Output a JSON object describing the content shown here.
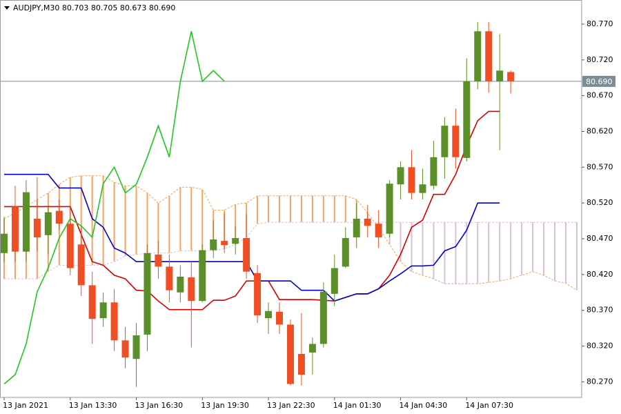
{
  "chart_data": {
    "type": "candlestick",
    "title": "AUDJPY,M30  80.703 80.705 80.673 80.690",
    "categories": [
      "13 Jan 2021",
      null,
      null,
      null,
      null,
      null,
      "13 Jan 13:30",
      null,
      null,
      null,
      null,
      null,
      "13 Jan 16:30",
      null,
      null,
      null,
      null,
      null,
      "13 Jan 19:30",
      null,
      null,
      null,
      null,
      null,
      "13 Jan 22:30",
      null,
      null,
      null,
      null,
      null,
      "14 Jan 01:30",
      null,
      null,
      null,
      null,
      null,
      "14 Jan 04:30",
      null,
      null,
      null,
      null,
      null,
      "14 Jan 07:30",
      null,
      null,
      null,
      null,
      null,
      null,
      null,
      null,
      null,
      null
    ],
    "ohlc": {
      "up_color": "#5a8f29",
      "down_color": "#f04e23",
      "open": [
        80.45,
        80.515,
        80.452,
        80.498,
        80.475,
        80.509,
        80.491,
        80.462,
        80.405,
        80.359,
        80.381,
        80.328,
        80.302,
        80.336,
        80.448,
        80.431,
        80.395,
        80.416,
        80.383,
        80.454,
        80.467,
        80.463,
        80.471,
        80.422,
        80.359,
        80.368,
        80.35,
        80.309,
        80.311,
        80.323,
        80.393,
        80.431,
        80.472,
        80.498,
        80.491,
        80.477,
        80.546,
        80.57,
        80.534,
        80.544,
        80.584,
        80.628,
        80.583,
        80.69,
        80.76,
        80.69,
        80.703,
        null,
        null,
        null,
        null,
        null,
        null
      ],
      "high": [
        80.501,
        80.544,
        80.552,
        80.556,
        80.515,
        80.525,
        80.515,
        80.486,
        80.424,
        80.395,
        80.4,
        80.347,
        80.352,
        80.462,
        80.467,
        80.448,
        80.433,
        80.438,
        80.462,
        80.496,
        80.506,
        80.488,
        80.504,
        80.433,
        80.381,
        80.381,
        80.357,
        80.366,
        80.332,
        80.409,
        80.448,
        80.486,
        80.52,
        80.517,
        80.51,
        80.552,
        80.578,
        80.594,
        80.568,
        80.607,
        80.64,
        80.652,
        80.722,
        80.773,
        80.773,
        80.756,
        80.705,
        null,
        null,
        null,
        null,
        null,
        null
      ],
      "low": [
        80.438,
        80.438,
        80.438,
        80.453,
        80.448,
        80.482,
        80.419,
        80.39,
        80.323,
        80.347,
        80.313,
        80.289,
        80.263,
        80.313,
        80.414,
        80.381,
        80.381,
        80.318,
        80.381,
        80.443,
        80.45,
        80.448,
        80.414,
        80.352,
        80.337,
        80.337,
        80.265,
        80.265,
        80.28,
        80.318,
        80.376,
        80.429,
        80.457,
        80.472,
        80.457,
        80.472,
        80.525,
        80.525,
        80.525,
        80.539,
        80.554,
        80.568,
        80.578,
        80.679,
        80.674,
        80.594,
        80.673,
        null,
        null,
        null,
        null,
        null,
        null
      ],
      "close": [
        80.477,
        80.452,
        80.535,
        80.472,
        80.507,
        80.491,
        80.429,
        80.405,
        80.358,
        80.381,
        80.328,
        80.304,
        80.335,
        80.45,
        80.431,
        80.398,
        80.417,
        80.383,
        80.454,
        80.469,
        80.461,
        80.471,
        80.424,
        80.363,
        80.369,
        80.35,
        80.267,
        80.28,
        80.323,
        80.396,
        80.429,
        80.471,
        80.498,
        80.488,
        80.472,
        80.547,
        80.57,
        80.534,
        80.546,
        80.584,
        80.628,
        80.584,
        80.69,
        80.76,
        80.69,
        80.705,
        80.69,
        null,
        null,
        null,
        null,
        null,
        null
      ]
    },
    "lines": [
      {
        "color": "#d40000",
        "values": [
          80.515,
          80.515,
          80.515,
          80.515,
          80.515,
          80.515,
          80.515,
          80.476,
          80.438,
          80.433,
          80.419,
          80.414,
          80.398,
          80.397,
          80.383,
          80.371,
          80.371,
          80.371,
          80.371,
          80.384,
          80.384,
          80.39,
          80.411,
          80.411,
          80.411,
          80.385,
          80.385,
          80.385,
          80.385,
          80.384,
          80.383,
          80.388,
          80.393,
          80.393,
          80.4,
          80.419,
          80.448,
          80.486,
          80.496,
          80.532,
          80.532,
          80.56,
          80.6,
          80.635,
          80.648,
          80.648,
          null,
          null,
          null,
          null,
          null,
          null,
          null
        ]
      },
      {
        "color": "#0000c8",
        "values": [
          80.56,
          80.56,
          80.56,
          80.56,
          80.56,
          80.541,
          80.541,
          80.541,
          80.498,
          80.486,
          80.457,
          80.45,
          80.438,
          80.438,
          80.438,
          80.438,
          80.438,
          80.438,
          80.438,
          80.438,
          80.438,
          80.438,
          80.438,
          80.411,
          80.411,
          80.411,
          80.411,
          80.398,
          80.398,
          80.398,
          80.383,
          80.388,
          80.393,
          80.393,
          80.4,
          80.411,
          80.421,
          80.432,
          80.432,
          80.433,
          80.453,
          80.459,
          80.482,
          80.52,
          80.52,
          80.52,
          null,
          null,
          null,
          null,
          null,
          null,
          null
        ]
      },
      {
        "color": "#22c622",
        "values": [
          80.267,
          80.28,
          80.323,
          80.396,
          80.429,
          80.471,
          80.498,
          80.488,
          80.472,
          80.547,
          80.57,
          80.534,
          80.546,
          80.584,
          80.628,
          80.584,
          80.69,
          80.76,
          80.69,
          80.705,
          80.69,
          null,
          null,
          null,
          null,
          null,
          null,
          null,
          null,
          null,
          null,
          null,
          null,
          null,
          null,
          null,
          null,
          null,
          null,
          null,
          null,
          null,
          null,
          null,
          null,
          null,
          null,
          null,
          null,
          null,
          null,
          null,
          null
        ]
      }
    ],
    "cloud": {
      "up_color": "#f4a460",
      "down_color": "#d8bfd8",
      "span_a": [
        80.498,
        80.506,
        80.515,
        80.525,
        80.534,
        80.546,
        80.556,
        80.558,
        80.558,
        80.558,
        80.549,
        80.544,
        80.544,
        80.534,
        80.52,
        80.53,
        80.542,
        80.542,
        80.539,
        80.51,
        80.51,
        80.518,
        80.52,
        80.53,
        80.53,
        80.53,
        80.53,
        80.53,
        80.53,
        80.53,
        80.53,
        80.53,
        80.525,
        80.506,
        80.486,
        80.462,
        80.438,
        80.424,
        80.419,
        80.414,
        80.407,
        80.407,
        80.407,
        80.407,
        80.409,
        80.411,
        80.414,
        80.419,
        80.424,
        80.419,
        80.411,
        80.408,
        80.398
      ],
      "span_b": [
        80.414,
        80.414,
        80.414,
        80.414,
        80.424,
        80.433,
        80.433,
        80.433,
        80.433,
        80.433,
        80.438,
        80.446,
        80.448,
        80.45,
        80.45,
        80.45,
        80.453,
        80.453,
        80.453,
        80.453,
        80.456,
        80.462,
        80.472,
        80.491,
        80.493,
        80.493,
        80.493,
        80.493,
        80.493,
        80.493,
        80.493,
        80.493,
        80.493,
        80.493,
        80.493,
        80.493,
        80.493,
        80.493,
        80.493,
        80.493,
        80.493,
        80.493,
        80.493,
        80.493,
        80.493,
        80.493,
        80.493,
        80.493,
        80.493,
        80.493,
        80.493,
        80.493,
        80.493
      ]
    },
    "last_price": {
      "value": 80.69,
      "label": "80.690",
      "color": "#7b8c99"
    },
    "ylim": [
      80.2482,
      80.8037
    ],
    "yticks": [
      {
        "value": 80.27,
        "label": "80.270"
      },
      {
        "value": 80.32,
        "label": "80.320"
      },
      {
        "value": 80.37,
        "label": "80.370"
      },
      {
        "value": 80.42,
        "label": "80.420"
      },
      {
        "value": 80.47,
        "label": "80.470"
      },
      {
        "value": 80.52,
        "label": "80.520"
      },
      {
        "value": 80.57,
        "label": "80.570"
      },
      {
        "value": 80.62,
        "label": "80.620"
      },
      {
        "value": 80.67,
        "label": "80.670"
      },
      {
        "value": 80.72,
        "label": "80.720"
      },
      {
        "value": 80.77,
        "label": "80.770"
      }
    ]
  }
}
